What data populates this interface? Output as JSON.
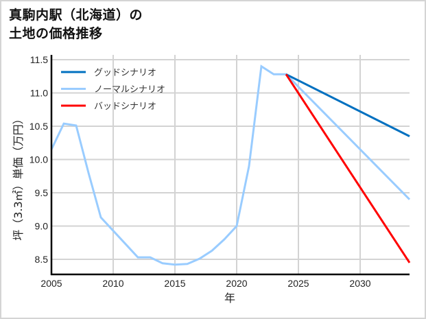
{
  "title": {
    "line1": "真駒内駅（北海道）の",
    "line2": "土地の価格推移"
  },
  "chart_data": {
    "type": "line",
    "title": "真駒内駅（北海道）の土地の価格推移",
    "xlabel": "年",
    "ylabel": "坪（3.3㎡）単価（万円）",
    "xlim": [
      2005,
      2034
    ],
    "ylim": [
      8.27,
      11.55
    ],
    "x_ticks": [
      2005,
      2010,
      2015,
      2020,
      2025,
      2030
    ],
    "x_tick_labels": [
      "2005",
      "2010",
      "2015",
      "2020",
      "2025",
      "2030"
    ],
    "y_ticks": [
      8.5,
      9.0,
      9.5,
      10.0,
      10.5,
      11.0,
      11.5
    ],
    "y_tick_labels": [
      "8.5",
      "9.0",
      "9.5",
      "10.0",
      "10.5",
      "11.0",
      "11.5"
    ],
    "grid": true,
    "legend_position": "upper left",
    "series": [
      {
        "name": "グッドシナリオ",
        "color": "#0070c0",
        "x": [
          2024,
          2034
        ],
        "values": [
          11.28,
          10.35
        ]
      },
      {
        "name": "ノーマルシナリオ",
        "color": "#99ccff",
        "x": [
          2005,
          2006,
          2007,
          2008,
          2009,
          2010,
          2011,
          2012,
          2013,
          2014,
          2015,
          2016,
          2017,
          2018,
          2019,
          2020,
          2021,
          2022,
          2023,
          2024,
          2034
        ],
        "values": [
          10.15,
          10.54,
          10.51,
          9.8,
          9.13,
          8.93,
          8.73,
          8.53,
          8.53,
          8.44,
          8.42,
          8.43,
          8.51,
          8.63,
          8.8,
          9.0,
          9.9,
          11.4,
          11.28,
          11.28,
          9.4
        ]
      },
      {
        "name": "バッドシナリオ",
        "color": "#ff0000",
        "x": [
          2024,
          2034
        ],
        "values": [
          11.28,
          8.45
        ]
      }
    ]
  }
}
